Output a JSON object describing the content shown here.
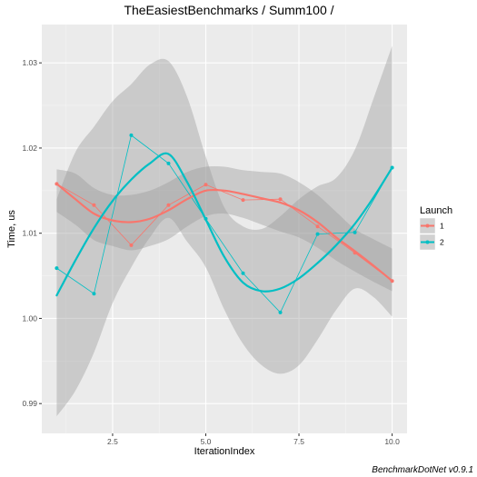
{
  "chart_data": {
    "type": "line",
    "title": "TheEasiestBenchmarks / Summ100 /",
    "xlabel": "IterationIndex",
    "ylabel": "Time, us",
    "caption": "BenchmarkDotNet v0.9.1",
    "xlim": [
      0.6,
      10.4
    ],
    "ylim": [
      0.9865,
      1.0345
    ],
    "x_ticks": [
      2.5,
      5.0,
      7.5,
      10.0
    ],
    "x_tick_labels": [
      "2.5",
      "5.0",
      "7.5",
      "10.0"
    ],
    "y_ticks": [
      0.99,
      1.0,
      1.01,
      1.02,
      1.03
    ],
    "y_tick_labels": [
      "0.99",
      "1.00",
      "1.01",
      "1.02",
      "1.03"
    ],
    "grid": true,
    "legend": {
      "title": "Launch",
      "position": "right"
    },
    "series": [
      {
        "name": "1",
        "color": "#F8766D",
        "x": [
          1,
          2,
          3,
          4,
          5,
          6,
          7,
          8,
          9,
          10
        ],
        "values": [
          1.0158,
          1.0133,
          1.0086,
          1.0133,
          1.0157,
          1.0139,
          1.014,
          1.0108,
          1.0077,
          1.0044
        ],
        "smooth_x": [
          1,
          1.5,
          2,
          2.5,
          3,
          3.5,
          4,
          4.5,
          5,
          5.5,
          6,
          6.5,
          7,
          7.5,
          8,
          8.5,
          9,
          9.5,
          10
        ],
        "smooth": [
          1.0158,
          1.014,
          1.0123,
          1.0115,
          1.0113,
          1.0117,
          1.0127,
          1.014,
          1.015,
          1.015,
          1.0146,
          1.0141,
          1.0136,
          1.0127,
          1.0113,
          1.0095,
          1.0079,
          1.0062,
          1.0044
        ],
        "ci_lower": [
          1.0125,
          1.011,
          1.0092,
          1.0085,
          1.008,
          1.0085,
          1.0093,
          1.0108,
          1.012,
          1.0123,
          1.0118,
          1.011,
          1.0102,
          1.0095,
          1.0083,
          1.0068,
          1.0055,
          1.0043,
          1.0032
        ],
        "ci_upper": [
          1.0175,
          1.017,
          1.0153,
          1.0145,
          1.0145,
          1.015,
          1.016,
          1.0172,
          1.0178,
          1.0178,
          1.0174,
          1.0172,
          1.017,
          1.016,
          1.0145,
          1.0125,
          1.0105,
          1.0093,
          1.0082
        ]
      },
      {
        "name": "2",
        "color": "#00BFC4",
        "x": [
          1,
          2,
          3,
          4,
          5,
          6,
          7,
          8,
          9,
          10
        ],
        "values": [
          1.0059,
          1.0029,
          1.0215,
          1.0182,
          1.0117,
          1.0053,
          1.0007,
          1.0099,
          1.0101,
          1.0177
        ],
        "smooth_x": [
          1,
          1.5,
          2,
          2.5,
          3,
          3.5,
          4,
          4.5,
          5,
          5.5,
          6,
          6.5,
          7,
          7.5,
          8,
          8.5,
          9,
          9.5,
          10
        ],
        "smooth": [
          1.0027,
          1.0068,
          1.0106,
          1.0138,
          1.0163,
          1.0182,
          1.0193,
          1.016,
          1.0116,
          1.0072,
          1.0042,
          1.0032,
          1.0035,
          1.0047,
          1.0065,
          1.0086,
          1.0111,
          1.0142,
          1.0177
        ],
        "ci_lower": [
          0.9885,
          0.9915,
          0.996,
          1.0018,
          1.006,
          1.0095,
          1.0118,
          1.009,
          1.006,
          1.001,
          0.997,
          0.9945,
          0.9935,
          0.9945,
          0.9975,
          1.001,
          1.0035,
          1.0025,
          1.0002
        ],
        "ci_upper": [
          1.014,
          1.0195,
          1.0225,
          1.0255,
          1.0275,
          1.0298,
          1.0302,
          1.026,
          1.019,
          1.013,
          1.0108,
          1.0105,
          1.012,
          1.014,
          1.0155,
          1.0165,
          1.0198,
          1.0258,
          1.032
        ]
      }
    ]
  }
}
